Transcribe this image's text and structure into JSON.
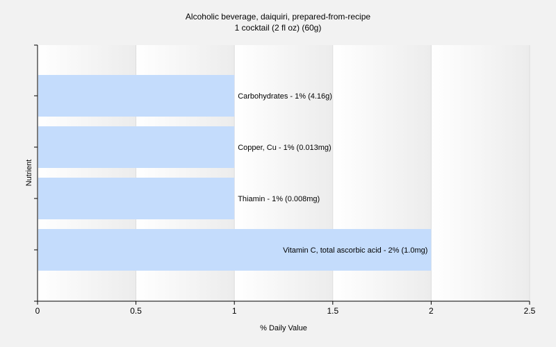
{
  "chart_data": {
    "type": "bar",
    "orientation": "horizontal",
    "title": "Alcoholic beverage, daiquiri, prepared-from-recipe",
    "subtitle": "1 cocktail (2 fl oz) (60g)",
    "xlabel": "% Daily Value",
    "ylabel": "Nutrient",
    "xlim": [
      0,
      2.5
    ],
    "xticks": [
      0,
      0.5,
      1,
      1.5,
      2,
      2.5
    ],
    "xtick_labels": [
      "0",
      "0.5",
      "1",
      "1.5",
      "2",
      "2.5"
    ],
    "grid": true,
    "bar_color": "#c4dcfc",
    "categories": [
      "Carbohydrates",
      "Copper, Cu",
      "Thiamin",
      "Vitamin C, total ascorbic acid"
    ],
    "values": [
      1,
      1,
      1,
      2
    ],
    "data_labels": [
      "Carbohydrates - 1% (4.16g)",
      "Copper, Cu - 1% (0.013mg)",
      "Thiamin - 1% (0.008mg)",
      "Vitamin C, total ascorbic acid - 2% (1.0mg)"
    ]
  }
}
